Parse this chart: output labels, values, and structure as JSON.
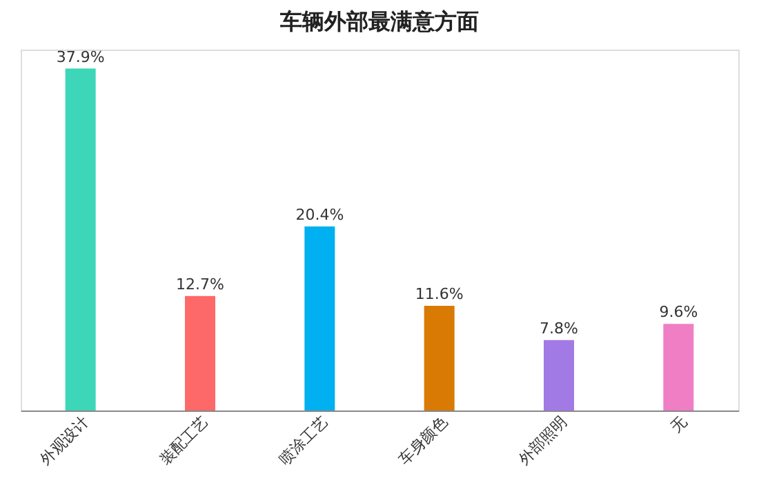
{
  "chart_data": {
    "type": "bar",
    "title": "车辆外部最满意方面",
    "categories": [
      "外观设计",
      "装配工艺",
      "喷涂工艺",
      "车身颜色",
      "外部照明",
      "无"
    ],
    "values": [
      37.9,
      12.7,
      20.4,
      11.6,
      7.8,
      9.6
    ],
    "value_labels": [
      "37.9%",
      "12.7%",
      "20.4%",
      "11.6%",
      "7.8%",
      "9.6%"
    ],
    "colors": [
      "#3dd6b9",
      "#fd6869",
      "#00b0f0",
      "#d97a05",
      "#a27ae6",
      "#f07ec5"
    ],
    "grid": false
  }
}
